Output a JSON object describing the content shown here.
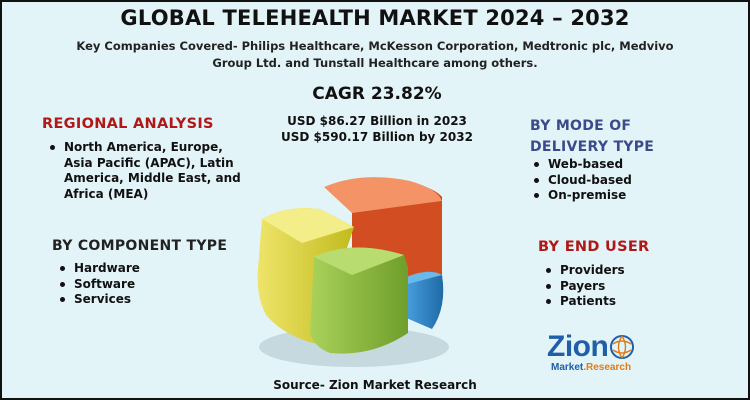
{
  "title": "GLOBAL TELEHEALTH MARKET 2024 – 2032",
  "subtitle": "Key Companies Covered- Philips Healthcare, McKesson Corporation, Medtronic plc, Medvivo Group Ltd. and Tunstall Healthcare among others.",
  "cagr": "CAGR 23.82%",
  "stats": [
    "USD $86.27 Billion in 2023",
    "USD $590.17 Billion by 2032"
  ],
  "regional": {
    "heading": "REGIONAL ANALYSIS",
    "items": [
      "North America, Europe, Asia Pacific (APAC), Latin America, Middle East, and Africa (MEA)"
    ]
  },
  "component": {
    "heading": "BY COMPONENT TYPE",
    "items": [
      "Hardware",
      "Software",
      "Services"
    ]
  },
  "delivery": {
    "heading": "BY MODE OF DELIVERY TYPE",
    "items": [
      "Web-based",
      "Cloud-based",
      "On-premise"
    ]
  },
  "end_user": {
    "heading": "BY END USER",
    "items": [
      "Providers",
      "Payers",
      "Patients"
    ]
  },
  "source": "Source- Zion Market Research",
  "logo": {
    "word": "Zion",
    "tag_a": "Market",
    "tag_b": ".Research"
  },
  "colors": {
    "red_heading": "#b01818",
    "blue_heading": "#3b4a8a",
    "pie_orange": "#e2572a",
    "pie_yellow": "#d6cf2c",
    "pie_green": "#8fbd3a",
    "pie_blue": "#2f86c8"
  },
  "icons": [
    "pie-chart-3d-graphic",
    "zion-logo-globe"
  ]
}
